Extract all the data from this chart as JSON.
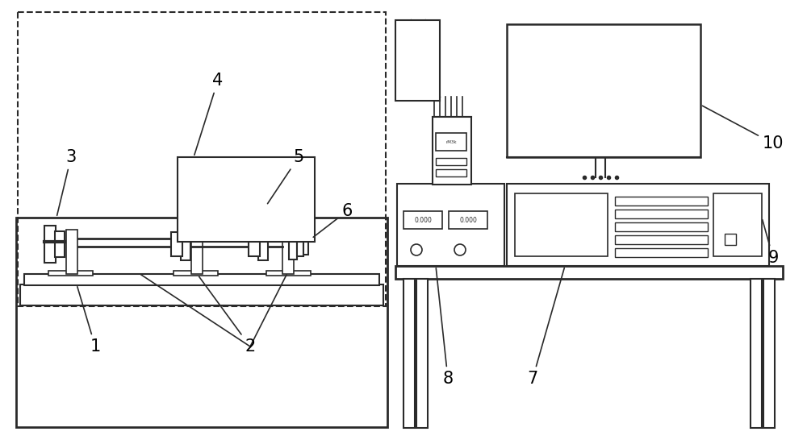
{
  "bg_color": "#ffffff",
  "line_color": "#2a2a2a",
  "label_fontsize": 15,
  "fig_w": 10.0,
  "fig_h": 5.46,
  "dpi": 100
}
